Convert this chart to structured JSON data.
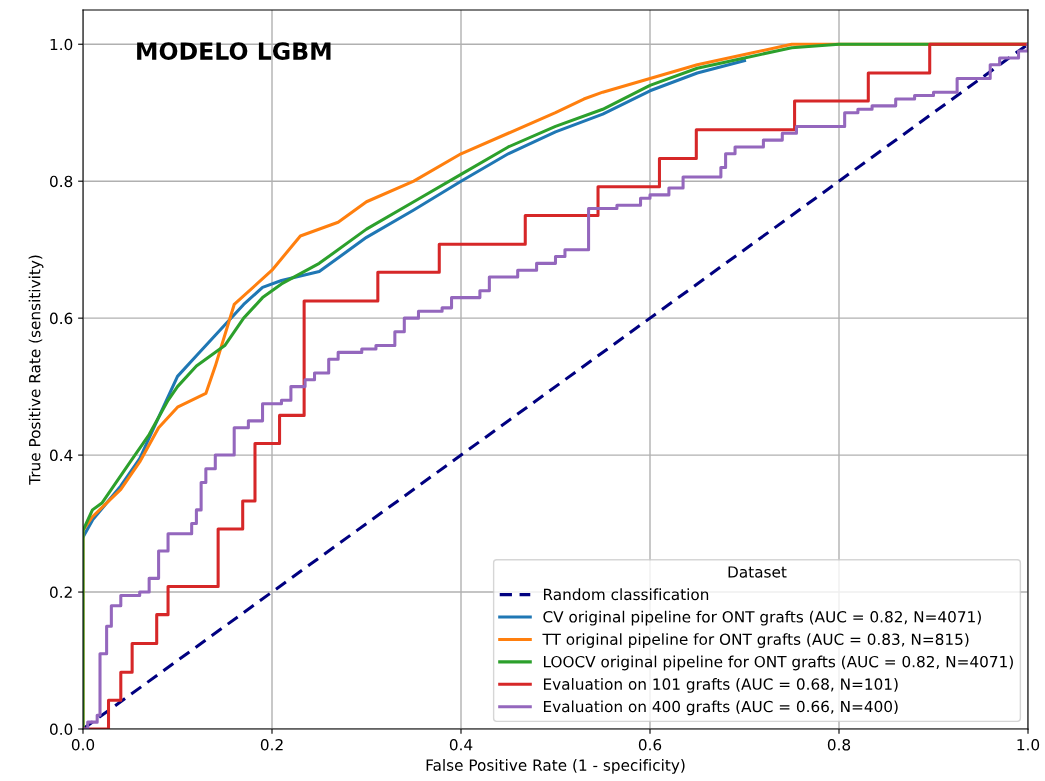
{
  "chart_data": {
    "type": "line",
    "title": "MODELO LGBM",
    "xlabel": "False Positive Rate (1 - specificity)",
    "ylabel": "True Positive Rate (sensitivity)",
    "legend_title": "Dataset",
    "legend": "bottom right",
    "grid": true,
    "xlim": [
      0,
      1
    ],
    "ylim": [
      0,
      1.05
    ],
    "xticks": [
      {
        "value": 0,
        "label": "0.0"
      },
      {
        "value": 0.2,
        "label": "0.2"
      },
      {
        "value": 0.4,
        "label": "0.4"
      },
      {
        "value": 0.6,
        "label": "0.6"
      },
      {
        "value": 0.8,
        "label": "0.8"
      },
      {
        "value": 1,
        "label": "1.0"
      }
    ],
    "yticks": [
      {
        "value": 0,
        "label": "0.0"
      },
      {
        "value": 0.2,
        "label": "0.2"
      },
      {
        "value": 0.4,
        "label": "0.4"
      },
      {
        "value": 0.6,
        "label": "0.6"
      },
      {
        "value": 0.8,
        "label": "0.8"
      },
      {
        "value": 1,
        "label": "1.0"
      }
    ],
    "series": [
      {
        "name": "Random classification",
        "line_style": "dashed",
        "color": "#000080",
        "x": [
          0,
          1
        ],
        "values": [
          0,
          1
        ]
      },
      {
        "name": "CV original pipeline for ONT grafts (AUC = 0.82, N=4071)",
        "color": "#1f77b4",
        "x": [
          0,
          0.01,
          0.025,
          0.04,
          0.06,
          0.08,
          0.1,
          0.12,
          0.14,
          0.17,
          0.19,
          0.21,
          0.25,
          0.3,
          0.35,
          0.4,
          0.45,
          0.5,
          0.55,
          0.6,
          0.65,
          0.7
        ],
        "values": [
          0.28,
          0.305,
          0.33,
          0.355,
          0.395,
          0.455,
          0.515,
          0.545,
          0.575,
          0.62,
          0.645,
          0.655,
          0.668,
          0.718,
          0.758,
          0.8,
          0.84,
          0.872,
          0.898,
          0.932,
          0.958,
          0.976
        ]
      },
      {
        "name": "TT original pipeline for ONT grafts (AUC = 0.83, N=815)",
        "color": "#ff7f0e",
        "x": [
          0,
          0,
          0.01,
          0.04,
          0.06,
          0.08,
          0.1,
          0.13,
          0.14,
          0.16,
          0.2,
          0.23,
          0.27,
          0.3,
          0.35,
          0.4,
          0.45,
          0.5,
          0.53,
          0.55,
          0.6,
          0.65,
          0.7,
          0.75,
          1
        ],
        "values": [
          0,
          0.29,
          0.31,
          0.35,
          0.39,
          0.44,
          0.47,
          0.49,
          0.53,
          0.62,
          0.67,
          0.72,
          0.74,
          0.77,
          0.8,
          0.84,
          0.87,
          0.9,
          0.92,
          0.93,
          0.95,
          0.97,
          0.985,
          1,
          1
        ]
      },
      {
        "name": "LOOCV original pipeline for ONT grafts (AUC = 0.82, N=4071)",
        "color": "#2ca02c",
        "x": [
          0,
          0,
          0.01,
          0.02,
          0.03,
          0.05,
          0.07,
          0.09,
          0.1,
          0.12,
          0.15,
          0.17,
          0.19,
          0.21,
          0.25,
          0.3,
          0.35,
          0.4,
          0.45,
          0.5,
          0.55,
          0.6,
          0.65,
          0.7,
          0.75,
          0.8,
          1
        ],
        "values": [
          0,
          0.29,
          0.32,
          0.33,
          0.35,
          0.39,
          0.43,
          0.48,
          0.5,
          0.53,
          0.56,
          0.6,
          0.63,
          0.65,
          0.68,
          0.73,
          0.77,
          0.81,
          0.85,
          0.88,
          0.905,
          0.94,
          0.965,
          0.98,
          0.995,
          1,
          1
        ]
      },
      {
        "name": "Evaluation on 101 grafts (AUC = 0.68, N=101)",
        "type": "step",
        "color": "#d62728",
        "x": [
          0,
          0.027,
          0.04,
          0.052,
          0.078,
          0.09,
          0.143,
          0.169,
          0.182,
          0.208,
          0.234,
          0.312,
          0.377,
          0.468,
          0.545,
          0.61,
          0.649,
          0.753,
          0.831,
          0.896,
          1
        ],
        "values": [
          0,
          0.042,
          0.083,
          0.125,
          0.167,
          0.208,
          0.292,
          0.333,
          0.417,
          0.458,
          0.625,
          0.667,
          0.708,
          0.75,
          0.792,
          0.833,
          0.875,
          0.917,
          0.958,
          1,
          1
        ]
      },
      {
        "name": "Evaluation on 400 grafts (AUC = 0.66, N=400)",
        "type": "step",
        "color": "#9467bd",
        "x": [
          0,
          0.005,
          0.015,
          0.018,
          0.025,
          0.03,
          0.04,
          0.06,
          0.07,
          0.08,
          0.09,
          0.115,
          0.12,
          0.125,
          0.13,
          0.14,
          0.16,
          0.175,
          0.19,
          0.21,
          0.22,
          0.235,
          0.245,
          0.26,
          0.27,
          0.295,
          0.31,
          0.33,
          0.34,
          0.355,
          0.38,
          0.39,
          0.42,
          0.43,
          0.46,
          0.48,
          0.5,
          0.51,
          0.535,
          0.55,
          0.565,
          0.59,
          0.6,
          0.62,
          0.635,
          0.675,
          0.68,
          0.69,
          0.72,
          0.74,
          0.755,
          0.806,
          0.82,
          0.835,
          0.86,
          0.88,
          0.9,
          0.925,
          0.96,
          0.97,
          0.99,
          1
        ],
        "values": [
          0,
          0.01,
          0.02,
          0.11,
          0.15,
          0.18,
          0.195,
          0.2,
          0.22,
          0.26,
          0.285,
          0.3,
          0.32,
          0.36,
          0.38,
          0.4,
          0.44,
          0.45,
          0.475,
          0.48,
          0.5,
          0.51,
          0.52,
          0.54,
          0.55,
          0.555,
          0.56,
          0.58,
          0.6,
          0.61,
          0.615,
          0.63,
          0.64,
          0.66,
          0.67,
          0.68,
          0.69,
          0.7,
          0.76,
          0.76,
          0.765,
          0.775,
          0.78,
          0.79,
          0.806,
          0.82,
          0.84,
          0.85,
          0.86,
          0.87,
          0.88,
          0.9,
          0.905,
          0.91,
          0.92,
          0.925,
          0.93,
          0.95,
          0.97,
          0.98,
          0.99,
          1
        ]
      }
    ]
  }
}
